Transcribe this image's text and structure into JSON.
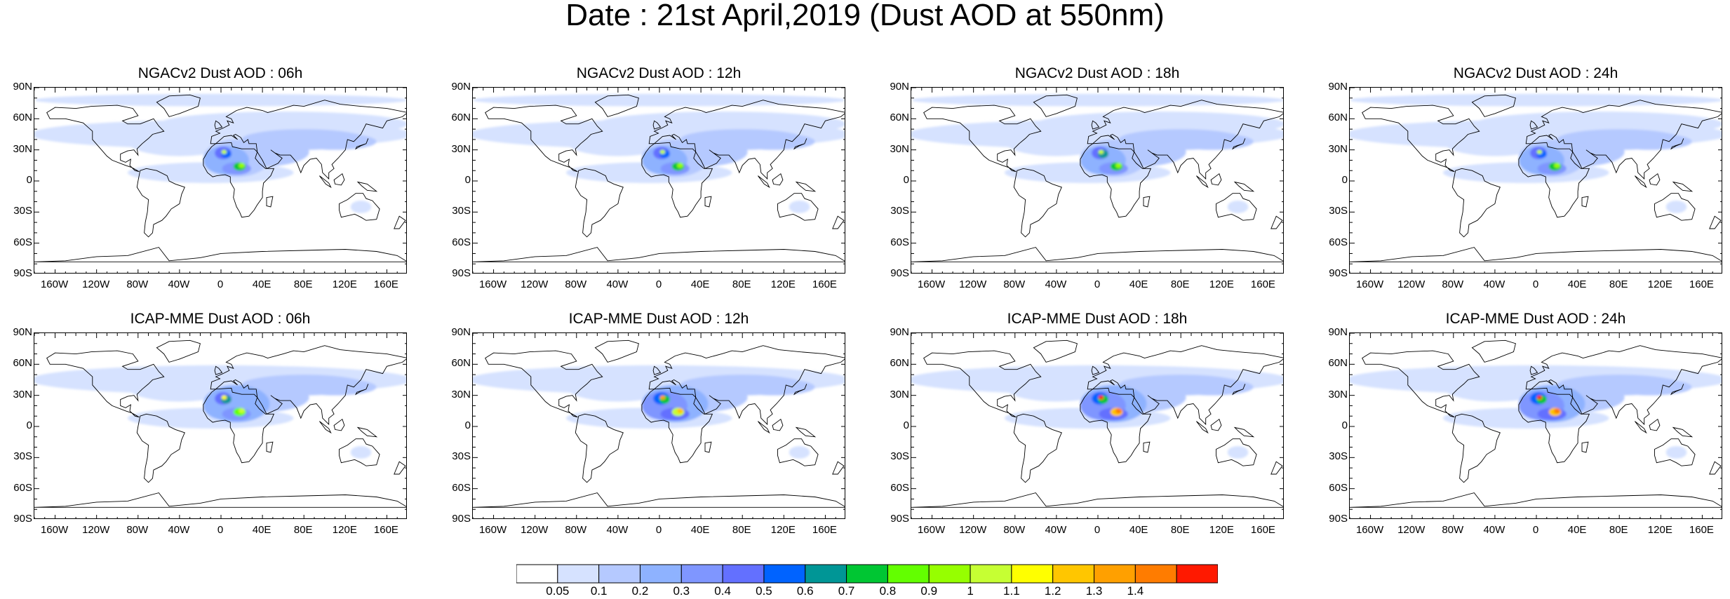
{
  "title": "Date : 21st April,2019 (Dust AOD at 550nm)",
  "lat_labels": [
    "90N",
    "60N",
    "30N",
    "0",
    "30S",
    "60S",
    "90S"
  ],
  "lon_labels": [
    "160W",
    "120W",
    "80W",
    "40W",
    "0",
    "40E",
    "80E",
    "120E",
    "160E"
  ],
  "panels": [
    {
      "title": "NGACv2 Dust AOD : 06h",
      "model": "NGACv2",
      "hour": "06h",
      "intensity": 0.78
    },
    {
      "title": "NGACv2 Dust AOD : 12h",
      "model": "NGACv2",
      "hour": "12h",
      "intensity": 0.8
    },
    {
      "title": "NGACv2 Dust AOD : 18h",
      "model": "NGACv2",
      "hour": "18h",
      "intensity": 0.82
    },
    {
      "title": "NGACv2 Dust AOD : 24h",
      "model": "NGACv2",
      "hour": "24h",
      "intensity": 0.8
    },
    {
      "title": "ICAP-MME Dust AOD : 06h",
      "model": "ICAP-MME",
      "hour": "06h",
      "intensity": 0.85
    },
    {
      "title": "ICAP-MME Dust AOD : 12h",
      "model": "ICAP-MME",
      "hour": "12h",
      "intensity": 0.95
    },
    {
      "title": "ICAP-MME Dust AOD : 18h",
      "model": "ICAP-MME",
      "hour": "18h",
      "intensity": 1.05
    },
    {
      "title": "ICAP-MME Dust AOD : 24h",
      "model": "ICAP-MME",
      "hour": "24h",
      "intensity": 1.05
    }
  ],
  "colorbar": {
    "levels": [
      "0.05",
      "0.1",
      "0.2",
      "0.3",
      "0.4",
      "0.5",
      "0.6",
      "0.7",
      "0.8",
      "0.9",
      "1",
      "1.1",
      "1.2",
      "1.3",
      "1.4"
    ],
    "colors": [
      "#ffffff",
      "#d6e2ff",
      "#b5c9ff",
      "#8eb2ff",
      "#7f96ff",
      "#6370ff",
      "#0063ff",
      "#009696",
      "#00c633",
      "#63ff00",
      "#96ff00",
      "#c6ff33",
      "#ffff00",
      "#ffc600",
      "#ffa000",
      "#ff7c00",
      "#ff1900"
    ]
  }
}
